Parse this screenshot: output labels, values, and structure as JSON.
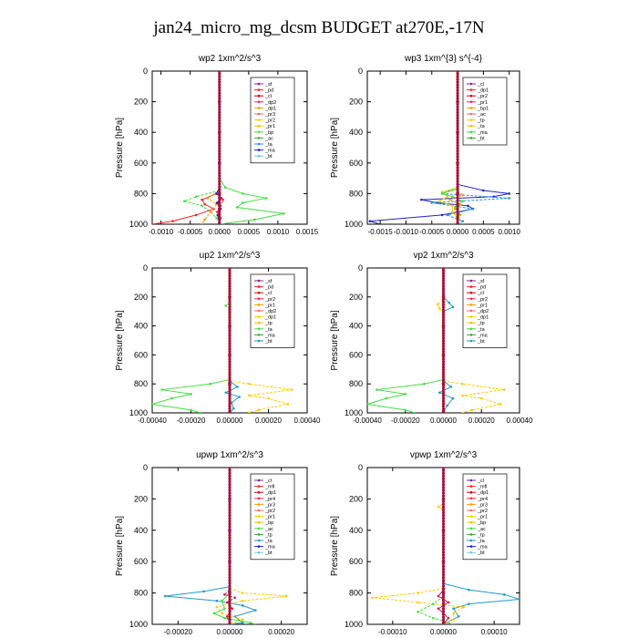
{
  "page": {
    "title": "jan24_micro_mg_dcsm  BUDGET at270E,-17N"
  },
  "chart_data": [
    {
      "type": "line",
      "title": "wp2   1xm^2/s^3",
      "ylabel": "Pressure [hPa]",
      "xlim": [
        -0.00115,
        0.0015
      ],
      "ylim": [
        1000,
        0
      ],
      "xticks": [
        -0.001,
        -0.0005,
        0.0,
        0.0005,
        0.001,
        0.0015
      ],
      "xtick_labels": [
        "-0.0010",
        "-0.0005",
        "0.0000",
        "0.0005",
        "0.0010",
        "0.0015"
      ],
      "yticks": [
        0,
        200,
        400,
        600,
        800,
        1000
      ],
      "legend": {
        "placement": "top-right",
        "entries": [
          "_sf",
          "_pd",
          "_cl",
          "_dp2",
          "_dp1",
          "_pr3",
          "_pr2",
          "_pr1",
          "_bp",
          "_ac",
          "_ta",
          "_ma",
          "_bt"
        ]
      },
      "series": [
        {
          "name": "_pr1",
          "color": "#44dd44",
          "pressure": [
            700,
            760,
            800,
            830,
            860,
            890,
            930,
            970,
            1000
          ],
          "values": [
            0.0,
            0.0001,
            0.0004,
            0.0008,
            0.0004,
            0.0003,
            0.0011,
            0.0006,
            0.0
          ]
        },
        {
          "name": "_bp",
          "color": "#44dd44",
          "pressure": [
            780,
            820,
            850,
            880,
            920,
            960,
            1000
          ],
          "values": [
            0.0,
            -0.0004,
            -0.0006,
            -0.0003,
            -0.00015,
            -5e-05,
            0.0
          ]
        },
        {
          "name": "_pd",
          "color": "#ff2222",
          "pressure": [
            760,
            800,
            840,
            870,
            900,
            940,
            980,
            1000
          ],
          "values": [
            0.0,
            -5e-05,
            -0.0003,
            -0.00025,
            -0.0001,
            -0.0004,
            -0.0008,
            -0.00115
          ]
        },
        {
          "name": "_dp1",
          "color": "#ff9900",
          "pressure": [
            780,
            830,
            870,
            920,
            970,
            1000
          ],
          "values": [
            0.0,
            -0.0002,
            -5e-05,
            -0.00015,
            -0.00025,
            -0.0003
          ]
        },
        {
          "name": "_ta",
          "color": "#2222cc",
          "pressure": [
            760,
            800,
            830,
            860,
            900,
            940,
            1000
          ],
          "values": [
            0.0,
            -5e-05,
            3e-05,
            -4e-05,
            2e-05,
            -3e-05,
            0.0
          ]
        },
        {
          "name": "_dp2",
          "color": "#ff2255",
          "pressure": [
            800,
            840,
            880,
            920,
            960,
            1000
          ],
          "values": [
            0.0,
            6e-05,
            2e-05,
            -4e-05,
            2e-05,
            0.0
          ]
        },
        {
          "name": "_sf",
          "color": "#882299",
          "pressure": [
            0,
            200,
            400,
            600,
            800,
            900,
            1000
          ],
          "values": [
            0.0,
            0.0,
            0.0,
            0.0,
            0.0,
            0.0,
            0.0
          ]
        }
      ]
    },
    {
      "type": "line",
      "title": "wp3   1xm^{3} s^{-4}",
      "ylabel": "Pressure [hPa]",
      "xlim": [
        -0.00175,
        0.0012
      ],
      "ylim": [
        1000,
        0
      ],
      "xticks": [
        -0.0015,
        -0.001,
        -0.0005,
        0.0,
        0.0005,
        0.001
      ],
      "xtick_labels": [
        "-0.0015",
        "-0.0010",
        "-0.0005",
        "0.0000",
        "0.0005",
        "0.0010"
      ],
      "yticks": [
        0,
        200,
        400,
        600,
        800,
        1000
      ],
      "legend": {
        "placement": "top-right",
        "entries": [
          "_cl",
          "_dp1",
          "_pr2",
          "_pr1",
          "_bp1",
          "_ac",
          "_tp",
          "_ta",
          "_ma",
          "_bt"
        ]
      },
      "series": [
        {
          "name": "_ta",
          "color": "#2222cc",
          "pressure": [
            740,
            780,
            800,
            820,
            840,
            860,
            880,
            900,
            940,
            980,
            1000
          ],
          "values": [
            0.0,
            0.0005,
            0.001,
            0.0007,
            -0.0007,
            -0.0004,
            0.0002,
            0.0003,
            -0.0003,
            -0.0017,
            -0.0015
          ]
        },
        {
          "name": "_tp",
          "color": "#2299cc",
          "pressure": [
            760,
            800,
            830,
            860,
            900,
            940,
            980,
            1000
          ],
          "values": [
            0.0,
            -0.0003,
            0.001,
            -0.0005,
            0.0003,
            -0.0002,
            0.0001,
            0.0
          ]
        },
        {
          "name": "_pr2",
          "color": "#ffcc00",
          "pressure": [
            760,
            790,
            820,
            850,
            880,
            920,
            960,
            1000
          ],
          "values": [
            0.0,
            -0.0003,
            -0.0002,
            -0.00035,
            -0.0001,
            -0.0001,
            0.0,
            0.0
          ]
        },
        {
          "name": "_pr1",
          "color": "#ff9900",
          "pressure": [
            780,
            810,
            840,
            870,
            900,
            940,
            1000
          ],
          "values": [
            0.0,
            0.0001,
            -0.00015,
            5e-05,
            -5e-05,
            5e-05,
            0.0
          ]
        },
        {
          "name": "_ac",
          "color": "#44dd44",
          "pressure": [
            770,
            800,
            820,
            850,
            890,
            930,
            1000
          ],
          "values": [
            0.0,
            -0.0003,
            -0.0001,
            0.0001,
            -5e-05,
            3e-05,
            0.0
          ]
        },
        {
          "name": "_cl",
          "color": "#cc0000",
          "pressure": [
            0,
            200,
            400,
            600,
            800,
            1000
          ],
          "values": [
            0.0,
            0.0,
            0.0,
            0.0,
            0.0,
            0.0
          ]
        }
      ]
    },
    {
      "type": "line",
      "title": "up2   1xm^2/s^3",
      "ylabel": "Pressure [hPa]",
      "xlim": [
        -0.0004,
        0.0004
      ],
      "ylim": [
        1000,
        0
      ],
      "xticks": [
        -0.0004,
        -0.0002,
        0.0,
        0.0002,
        0.0004
      ],
      "xtick_labels": [
        "-0.00040",
        "-0.00020",
        "0.00000",
        "0.00020",
        "0.00040"
      ],
      "yticks": [
        0,
        200,
        400,
        600,
        800,
        1000
      ],
      "legend": {
        "placement": "top-right",
        "entries": [
          "_sf",
          "_pd",
          "_cl",
          "_pr2",
          "_pr1",
          "_dp2",
          "_dp1",
          "_tp",
          "_ta",
          "_ma",
          "_bt"
        ]
      },
      "series": [
        {
          "name": "_dp2",
          "color": "#44dd44",
          "pressure": [
            770,
            800,
            840,
            870,
            900,
            940,
            980,
            1000
          ],
          "values": [
            0.0,
            -0.0001,
            -0.00035,
            -0.0002,
            -0.0003,
            -0.0004,
            -0.0002,
            -0.00015
          ]
        },
        {
          "name": "_pr2",
          "color": "#ffcc00",
          "pressure": [
            780,
            800,
            840,
            880,
            900,
            940,
            980,
            1000
          ],
          "values": [
            0.0,
            0.0001,
            0.00032,
            0.0001,
            0.0002,
            0.0003,
            0.00015,
            0.0001
          ]
        },
        {
          "name": "_tp",
          "color": "#2299cc",
          "pressure": [
            780,
            820,
            860,
            890,
            930,
            970,
            1000
          ],
          "values": [
            0.0,
            4e-05,
            -2e-05,
            5e-05,
            1e-05,
            2e-05,
            0.0
          ]
        },
        {
          "name": "_dp1",
          "color": "#44dd44",
          "pressure": [
            240,
            260,
            280,
            300
          ],
          "values": [
            0.0,
            -2e-05,
            0.0,
            0.0
          ]
        },
        {
          "name": "_pd",
          "color": "#cc0000",
          "pressure": [
            0,
            200,
            400,
            600,
            800,
            1000
          ],
          "values": [
            0.0,
            0.0,
            0.0,
            0.0,
            0.0,
            0.0
          ]
        }
      ]
    },
    {
      "type": "line",
      "title": "vp2   1xm^2/s^3",
      "ylabel": "Pressure [hPa]",
      "xlim": [
        -0.0004,
        0.0004
      ],
      "ylim": [
        1000,
        0
      ],
      "xticks": [
        -0.0004,
        -0.0002,
        0.0,
        0.0002,
        0.0004
      ],
      "xtick_labels": [
        "-0.00040",
        "-0.00020",
        "0.00000",
        "0.00020",
        "0.00040"
      ],
      "yticks": [
        0,
        200,
        400,
        600,
        800,
        1000
      ],
      "legend": {
        "placement": "top-right",
        "entries": [
          "_sf",
          "_pd",
          "_cl",
          "_pr2",
          "_pr1",
          "_dp2",
          "_dp1",
          "_tp",
          "_ta",
          "_ma",
          "_bt"
        ]
      },
      "series": [
        {
          "name": "_dp2",
          "color": "#44dd44",
          "pressure": [
            770,
            800,
            840,
            870,
            900,
            940,
            980,
            1000
          ],
          "values": [
            0.0,
            -0.0001,
            -0.00035,
            -0.0002,
            -0.0003,
            -0.0004,
            -0.0002,
            -0.00015
          ]
        },
        {
          "name": "_pr2",
          "color": "#ffcc00",
          "pressure": [
            780,
            800,
            840,
            880,
            900,
            940,
            980,
            1000
          ],
          "values": [
            0.0,
            0.0001,
            0.00032,
            0.0001,
            0.0002,
            0.0003,
            0.00015,
            0.0001
          ]
        },
        {
          "name": "_tp",
          "color": "#2299cc",
          "pressure": [
            200,
            240,
            270,
            300,
            780,
            820,
            860,
            900,
            950,
            1000
          ],
          "values": [
            0.0,
            3e-05,
            5e-05,
            0.0,
            0.0,
            4e-05,
            -2e-05,
            5e-05,
            2e-05,
            0.0
          ]
        },
        {
          "name": "_pr1",
          "color": "#ffcc00",
          "pressure": [
            220,
            250,
            280,
            310
          ],
          "values": [
            0.0,
            -3e-05,
            -2e-05,
            0.0
          ]
        },
        {
          "name": "_pd",
          "color": "#cc0000",
          "pressure": [
            0,
            200,
            400,
            600,
            800,
            1000
          ],
          "values": [
            0.0,
            0.0,
            0.0,
            0.0,
            0.0,
            0.0
          ]
        }
      ]
    },
    {
      "type": "line",
      "title": "upwp   1xm^2/s^3",
      "ylabel": "Pressure [hPa]",
      "xlim": [
        -0.0003,
        0.0003
      ],
      "ylim": [
        1000,
        0
      ],
      "xticks": [
        -0.0002,
        0.0,
        0.0002
      ],
      "xtick_labels": [
        "-0.00020",
        "0.00000",
        "0.00020"
      ],
      "yticks": [
        0,
        200,
        400,
        600,
        800,
        1000
      ],
      "legend": {
        "placement": "top-right",
        "entries": [
          "_cl",
          "_mfl",
          "_dp1",
          "_pr4",
          "_pr3",
          "_pr2",
          "_pr1",
          "_bp",
          "_ac",
          "_tp",
          "_ta",
          "_ma",
          "_bt"
        ]
      },
      "series": [
        {
          "name": "_tp",
          "color": "#2299cc",
          "pressure": [
            760,
            790,
            820,
            850,
            880,
            910,
            950,
            990,
            1000
          ],
          "values": [
            0.0,
            -0.0001,
            -0.00025,
            -5e-05,
            5e-05,
            0.0001,
            2e-05,
            5e-05,
            0.0
          ]
        },
        {
          "name": "_pr1",
          "color": "#ffcc00",
          "pressure": [
            770,
            800,
            820,
            850,
            890,
            930,
            970,
            1000
          ],
          "values": [
            0.0,
            5e-05,
            0.00022,
            5e-05,
            -5e-05,
            -3e-05,
            5e-05,
            0.0
          ]
        },
        {
          "name": "_ac",
          "color": "#44dd44",
          "pressure": [
            800,
            850,
            900,
            930,
            960,
            990,
            1000
          ],
          "values": [
            0.0,
            -3e-05,
            -2e-05,
            -6e-05,
            -2e-05,
            8e-05,
            0.0001
          ]
        },
        {
          "name": "_dp1",
          "color": "#cc2255",
          "pressure": [
            780,
            810,
            830,
            860,
            900,
            950,
            1000
          ],
          "values": [
            0.0,
            -2e-05,
            2e-05,
            -1e-05,
            1e-05,
            -1e-05,
            0.0
          ]
        },
        {
          "name": "_cl",
          "color": "#882299",
          "pressure": [
            0,
            200,
            400,
            600,
            800,
            1000
          ],
          "values": [
            0.0,
            0.0,
            0.0,
            0.0,
            0.0,
            0.0
          ]
        }
      ]
    },
    {
      "type": "line",
      "title": "vpwp   1xm^2/s^3",
      "ylabel": "Pressure [hPa]",
      "xlim": [
        -0.00015,
        0.00015
      ],
      "ylim": [
        1000,
        0
      ],
      "xticks": [
        -0.0001,
        0.0,
        0.0001
      ],
      "xtick_labels": [
        "-0.00010",
        "0.00000",
        "0.00010"
      ],
      "yticks": [
        0,
        200,
        400,
        600,
        800,
        1000
      ],
      "legend": {
        "placement": "top-right",
        "entries": [
          "_cl",
          "_mfl",
          "_dp1",
          "_pr4",
          "_pr3",
          "_pr2",
          "_pr1",
          "_bp",
          "_ac",
          "_tp",
          "_ta",
          "_ma",
          "_bt"
        ]
      },
      "series": [
        {
          "name": "_tp",
          "color": "#2299cc",
          "pressure": [
            740,
            780,
            810,
            840,
            870,
            900,
            950,
            1000
          ],
          "values": [
            0.0,
            5e-05,
            0.00012,
            0.00015,
            5e-05,
            2e-05,
            3e-05,
            0.0
          ]
        },
        {
          "name": "_pr1",
          "color": "#ffcc00",
          "pressure": [
            770,
            800,
            830,
            860,
            890,
            930,
            970,
            1000
          ],
          "values": [
            0.0,
            -5e-05,
            -0.00014,
            -5e-05,
            4e-05,
            2e-05,
            2e-05,
            0.0
          ]
        },
        {
          "name": "_pr2",
          "color": "#ffcc00",
          "pressure": [
            230,
            250,
            270,
            290
          ],
          "values": [
            0.0,
            -1e-05,
            0.0,
            0.0
          ]
        },
        {
          "name": "_ac",
          "color": "#44dd44",
          "pressure": [
            820,
            870,
            920,
            960,
            1000
          ],
          "values": [
            0.0,
            -2e-05,
            -5e-05,
            -2e-05,
            2e-05
          ]
        },
        {
          "name": "_dp1",
          "color": "#cc2255",
          "pressure": [
            780,
            820,
            860,
            900,
            960,
            1000
          ],
          "values": [
            0.0,
            -1e-05,
            1e-05,
            -1e-05,
            1e-05,
            0.0
          ]
        },
        {
          "name": "_cl",
          "color": "#882299",
          "pressure": [
            0,
            200,
            400,
            600,
            800,
            1000
          ],
          "values": [
            0.0,
            0.0,
            0.0,
            0.0,
            0.0,
            0.0
          ]
        }
      ]
    }
  ]
}
